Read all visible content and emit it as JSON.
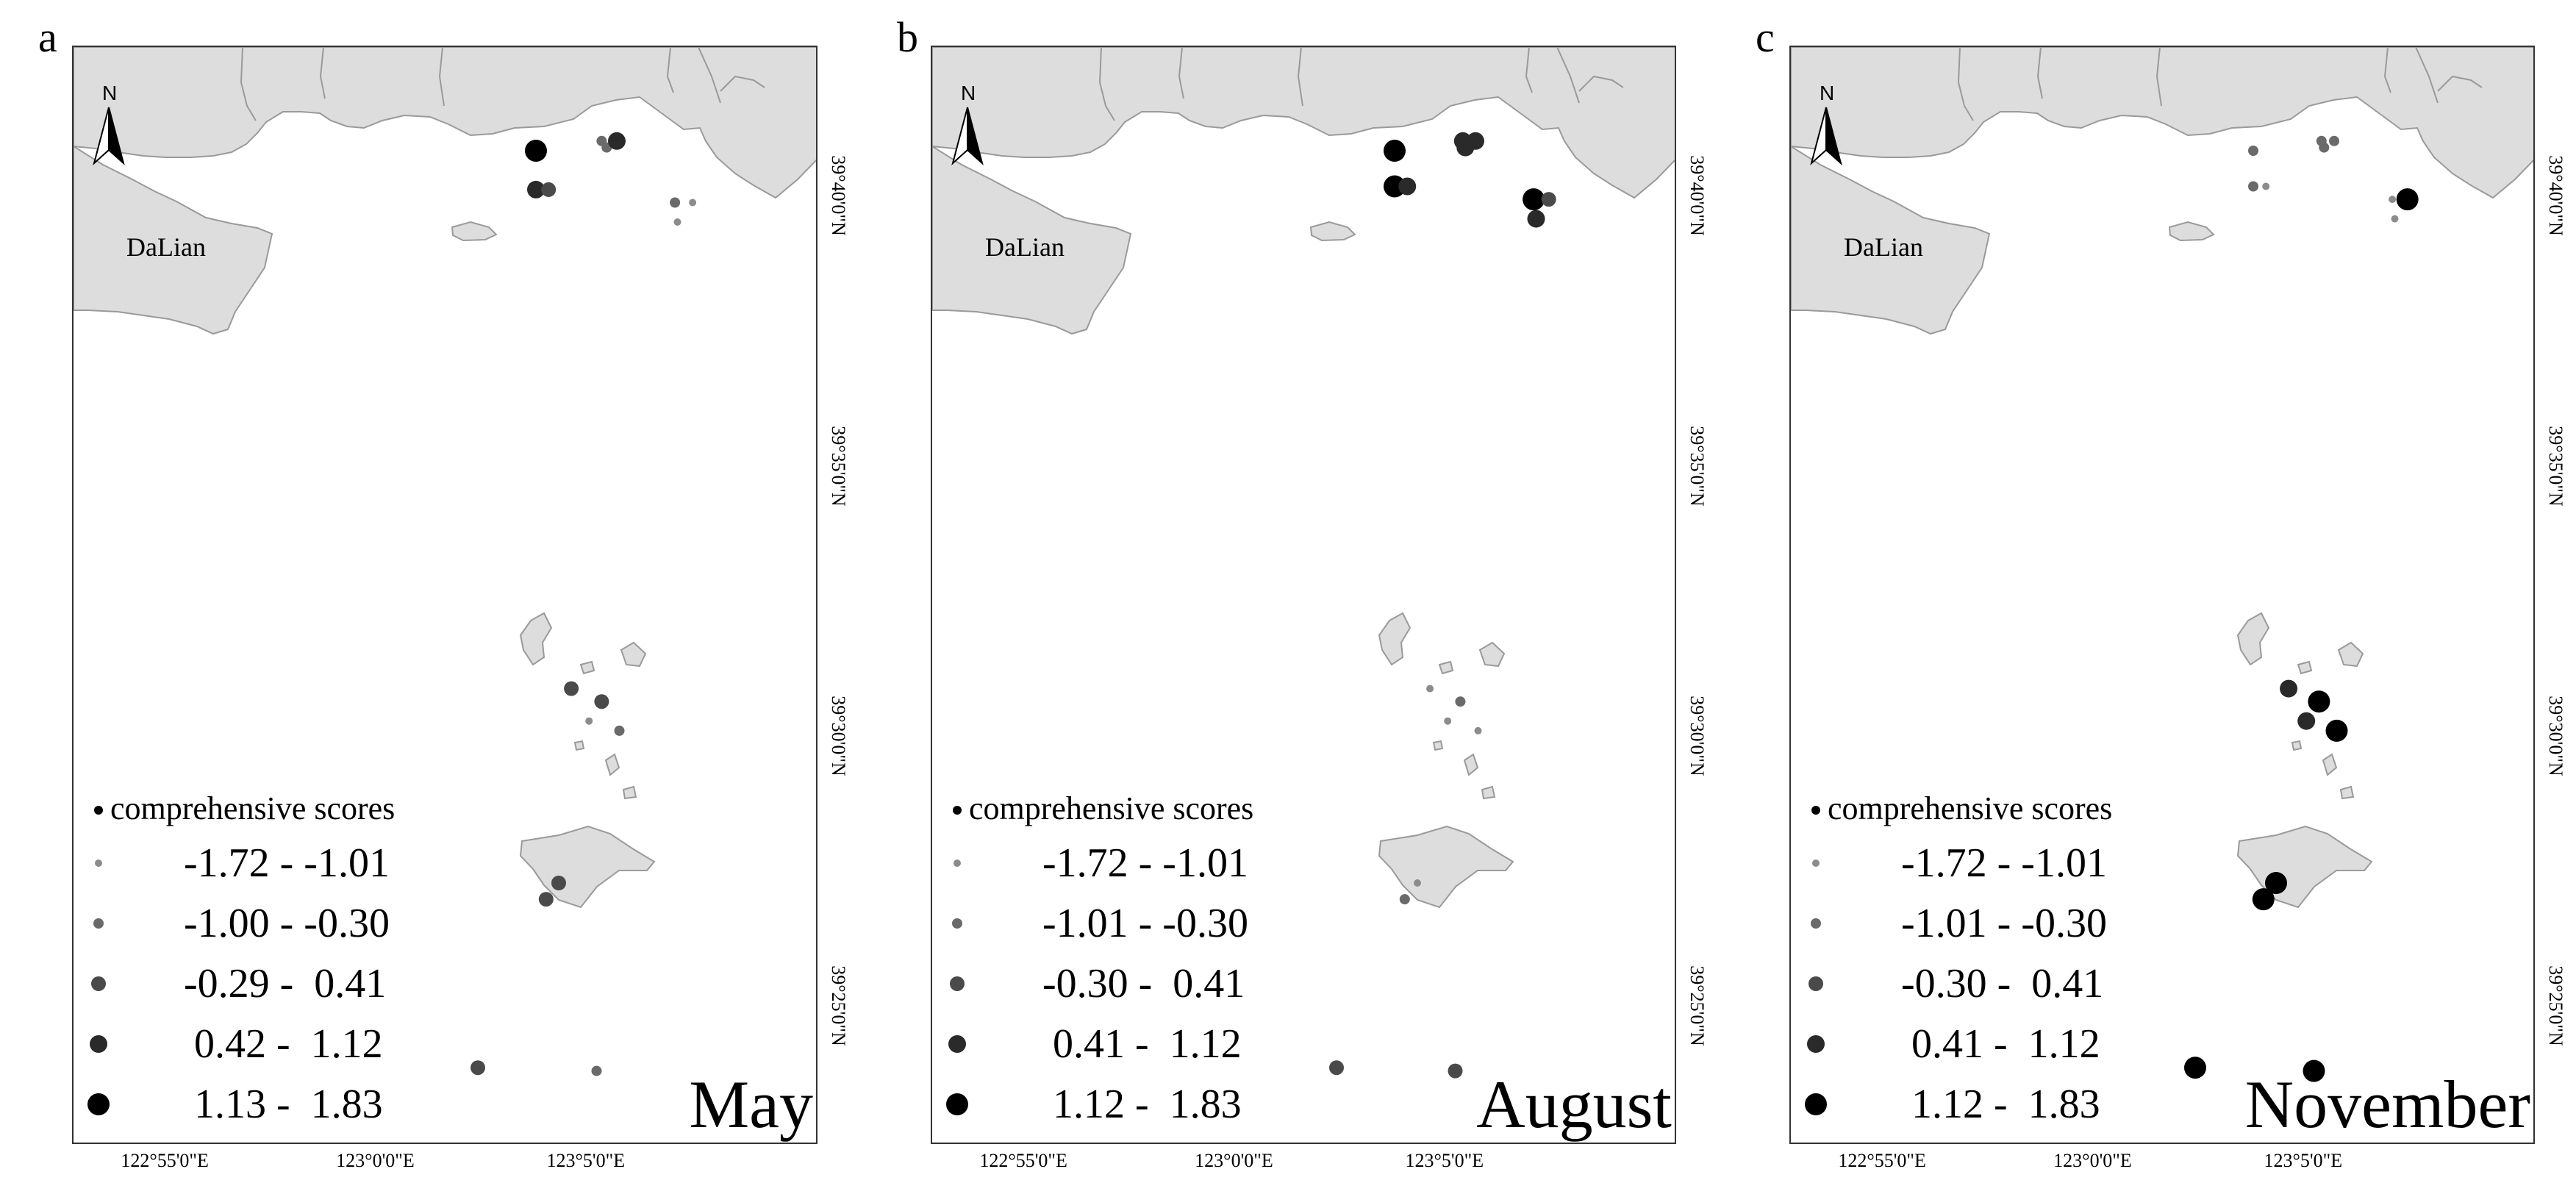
{
  "land_color": "#dddddd",
  "coast_color": "#9a9a9a",
  "legend_title": "comprehensive scores",
  "city_label": "DaLian",
  "lon_labels": [
    "122°55'0\"E",
    "123°0'0\"E",
    "123°5'0\"E"
  ],
  "lat_labels": [
    "39°40'0\"N",
    "39°35'0\"N",
    "39°30'0\"N",
    "39°25'0\"N"
  ],
  "size_classes": [
    {
      "class": 1,
      "color": "#8c8c8c"
    },
    {
      "class": 2,
      "color": "#6a6a6a"
    },
    {
      "class": 3,
      "color": "#4a4a4a"
    },
    {
      "class": 4,
      "color": "#2a2a2a"
    },
    {
      "class": 5,
      "color": "#000000"
    }
  ],
  "panels": [
    {
      "letter": "a",
      "month": "May",
      "legend": [
        "-1.72 - -1.01",
        "-1.00 - -0.30",
        "-0.29 -  0.41",
        " 0.42 -  1.12",
        " 1.13 -  1.83"
      ],
      "stations": [
        {
          "lon": 123.063,
          "lat": 39.681,
          "class": 5
        },
        {
          "lon": 123.063,
          "lat": 39.669,
          "class": 4
        },
        {
          "lon": 123.068,
          "lat": 39.669,
          "class": 3
        },
        {
          "lon": 123.089,
          "lat": 39.684,
          "class": 2
        },
        {
          "lon": 123.091,
          "lat": 39.682,
          "class": 2
        },
        {
          "lon": 123.095,
          "lat": 39.684,
          "class": 4
        },
        {
          "lon": 123.118,
          "lat": 39.665,
          "class": 2
        },
        {
          "lon": 123.125,
          "lat": 39.665,
          "class": 1
        },
        {
          "lon": 123.119,
          "lat": 39.659,
          "class": 1
        },
        {
          "lon": 123.077,
          "lat": 39.515,
          "class": 3
        },
        {
          "lon": 123.089,
          "lat": 39.511,
          "class": 3
        },
        {
          "lon": 123.084,
          "lat": 39.505,
          "class": 1
        },
        {
          "lon": 123.096,
          "lat": 39.502,
          "class": 2
        },
        {
          "lon": 123.072,
          "lat": 39.455,
          "class": 3
        },
        {
          "lon": 123.067,
          "lat": 39.45,
          "class": 3
        },
        {
          "lon": 123.04,
          "lat": 39.398,
          "class": 3
        },
        {
          "lon": 123.087,
          "lat": 39.397,
          "class": 2
        }
      ]
    },
    {
      "letter": "b",
      "month": "August",
      "legend": [
        "-1.72 - -1.01",
        "-1.01 - -0.30",
        "-0.30 -  0.41",
        " 0.41 -  1.12",
        " 1.12 -  1.83"
      ],
      "stations": [
        {
          "lon": 123.063,
          "lat": 39.681,
          "class": 5
        },
        {
          "lon": 123.063,
          "lat": 39.67,
          "class": 5
        },
        {
          "lon": 123.068,
          "lat": 39.67,
          "class": 4
        },
        {
          "lon": 123.09,
          "lat": 39.684,
          "class": 4
        },
        {
          "lon": 123.091,
          "lat": 39.682,
          "class": 4
        },
        {
          "lon": 123.095,
          "lat": 39.684,
          "class": 4
        },
        {
          "lon": 123.118,
          "lat": 39.666,
          "class": 5
        },
        {
          "lon": 123.124,
          "lat": 39.666,
          "class": 3
        },
        {
          "lon": 123.119,
          "lat": 39.66,
          "class": 4
        },
        {
          "lon": 123.077,
          "lat": 39.515,
          "class": 1
        },
        {
          "lon": 123.089,
          "lat": 39.511,
          "class": 2
        },
        {
          "lon": 123.084,
          "lat": 39.505,
          "class": 1
        },
        {
          "lon": 123.096,
          "lat": 39.502,
          "class": 1
        },
        {
          "lon": 123.072,
          "lat": 39.455,
          "class": 1
        },
        {
          "lon": 123.067,
          "lat": 39.45,
          "class": 2
        },
        {
          "lon": 123.04,
          "lat": 39.398,
          "class": 3
        },
        {
          "lon": 123.087,
          "lat": 39.397,
          "class": 3
        }
      ]
    },
    {
      "letter": "c",
      "month": "November",
      "legend": [
        "-1.72 - -1.01",
        "-1.01 - -0.30",
        "-0.30 -  0.41",
        " 0.41 -  1.12",
        " 1.12 -  1.83"
      ],
      "stations": [
        {
          "lon": 123.063,
          "lat": 39.681,
          "class": 2
        },
        {
          "lon": 123.063,
          "lat": 39.67,
          "class": 2
        },
        {
          "lon": 123.068,
          "lat": 39.67,
          "class": 1
        },
        {
          "lon": 123.09,
          "lat": 39.684,
          "class": 2
        },
        {
          "lon": 123.091,
          "lat": 39.682,
          "class": 2
        },
        {
          "lon": 123.095,
          "lat": 39.684,
          "class": 2
        },
        {
          "lon": 123.118,
          "lat": 39.666,
          "class": 1
        },
        {
          "lon": 123.124,
          "lat": 39.666,
          "class": 5
        },
        {
          "lon": 123.119,
          "lat": 39.66,
          "class": 1
        },
        {
          "lon": 123.077,
          "lat": 39.515,
          "class": 4
        },
        {
          "lon": 123.089,
          "lat": 39.511,
          "class": 5
        },
        {
          "lon": 123.084,
          "lat": 39.505,
          "class": 4
        },
        {
          "lon": 123.096,
          "lat": 39.502,
          "class": 5
        },
        {
          "lon": 123.072,
          "lat": 39.455,
          "class": 5
        },
        {
          "lon": 123.067,
          "lat": 39.45,
          "class": 5
        },
        {
          "lon": 123.04,
          "lat": 39.398,
          "class": 5
        },
        {
          "lon": 123.087,
          "lat": 39.397,
          "class": 5
        }
      ]
    }
  ]
}
